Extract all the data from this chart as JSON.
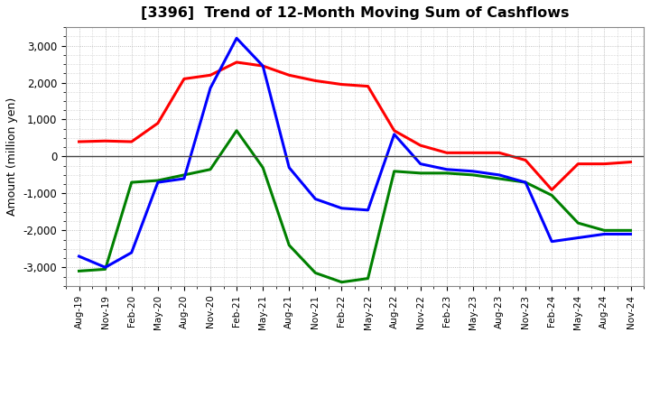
{
  "title": "[3396]  Trend of 12-Month Moving Sum of Cashflows",
  "ylabel": "Amount (million yen)",
  "ylim": [
    -3500,
    3500
  ],
  "yticks": [
    -3000,
    -2000,
    -1000,
    0,
    1000,
    2000,
    3000
  ],
  "labels": [
    "Aug-19",
    "Nov-19",
    "Feb-20",
    "May-20",
    "Aug-20",
    "Nov-20",
    "Feb-21",
    "May-21",
    "Aug-21",
    "Nov-21",
    "Feb-22",
    "May-22",
    "Aug-22",
    "Nov-22",
    "Feb-23",
    "May-23",
    "Aug-23",
    "Nov-23",
    "Feb-24",
    "May-24",
    "Aug-24",
    "Nov-24"
  ],
  "operating": [
    400,
    420,
    400,
    900,
    2100,
    2200,
    2550,
    2450,
    2200,
    2050,
    1950,
    1900,
    700,
    300,
    100,
    100,
    100,
    -100,
    -900,
    -200,
    -200,
    -150
  ],
  "investing": [
    -3100,
    -3050,
    -700,
    -650,
    -500,
    -350,
    700,
    -300,
    -2400,
    -3150,
    -3400,
    -3300,
    -400,
    -450,
    -450,
    -500,
    -600,
    -700,
    -1050,
    -1800,
    -2000,
    -2000
  ],
  "free": [
    -2700,
    -3000,
    -2600,
    -700,
    -600,
    1850,
    3200,
    2450,
    -300,
    -1150,
    -1400,
    -1450,
    600,
    -200,
    -350,
    -400,
    -500,
    -700,
    -2300,
    -2200,
    -2100,
    -2100
  ],
  "operating_color": "#ff0000",
  "investing_color": "#008000",
  "free_color": "#0000ff",
  "line_width": 2.2,
  "bg_color": "#ffffff",
  "plot_bg_color": "#ffffff",
  "grid_color": "#b0b0b0",
  "zero_line_color": "#444444"
}
